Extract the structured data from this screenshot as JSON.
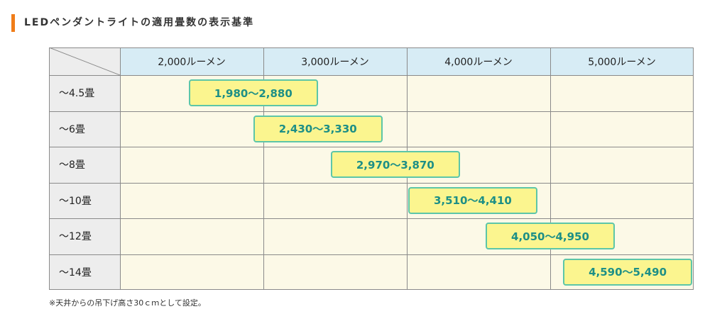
{
  "title": "LEDペンダントライトの適用畳数の表示基準",
  "accent_color": "#f07d19",
  "note": "※天井からの吊下げ高さ30ｃｍとして設定。",
  "chart_data": {
    "type": "table",
    "columns": [
      "2,000ルーメン",
      "3,000ルーメン",
      "4,000ルーメン",
      "5,000ルーメン"
    ],
    "rows": [
      {
        "label": "～4.5畳",
        "range": "1,980～2,880",
        "low": 1980,
        "high": 2880
      },
      {
        "label": "～6畳",
        "range": "2,430～3,330",
        "low": 2430,
        "high": 3330
      },
      {
        "label": "～8畳",
        "range": "2,970～3,870",
        "low": 2970,
        "high": 3870
      },
      {
        "label": "～10畳",
        "range": "3,510～4,410",
        "low": 3510,
        "high": 4410
      },
      {
        "label": "～12畳",
        "range": "4,050～4,950",
        "low": 4050,
        "high": 4950
      },
      {
        "label": "～14畳",
        "range": "4,590～5,490",
        "low": 4590,
        "high": 5490
      }
    ],
    "colors": {
      "header_bg": "#d7ecf5",
      "row_header_bg": "#ededed",
      "cell_bg": "#fcf9e7",
      "range_fill": "#fbf58f",
      "range_border": "#5cc6a8",
      "range_text": "#1d8f86"
    }
  }
}
